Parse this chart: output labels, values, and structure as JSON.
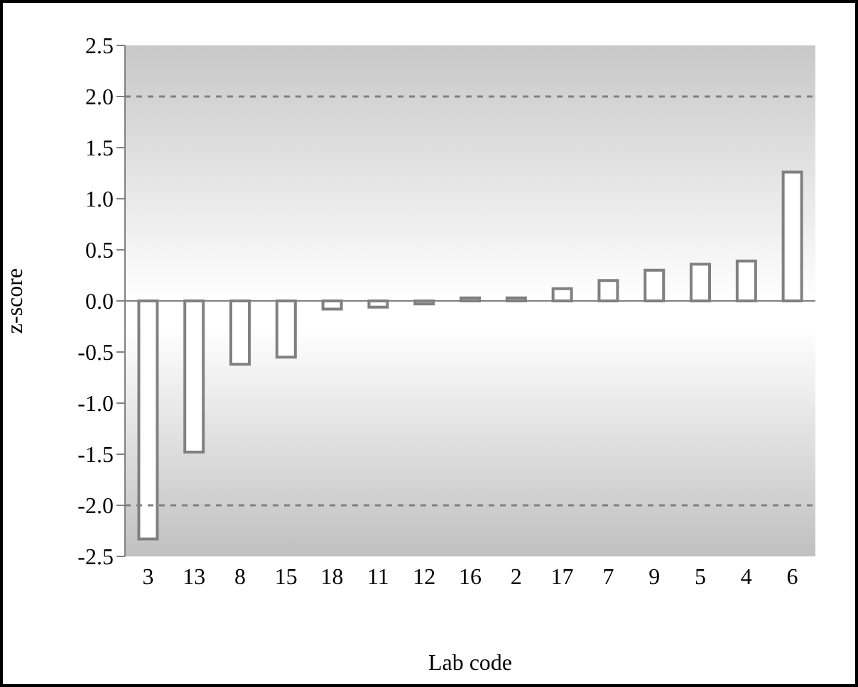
{
  "chart_data": {
    "type": "bar",
    "xlabel": "Lab code",
    "ylabel": "z-score",
    "categories": [
      "3",
      "13",
      "8",
      "15",
      "18",
      "11",
      "12",
      "16",
      "2",
      "17",
      "7",
      "9",
      "5",
      "4",
      "6"
    ],
    "values": [
      -2.33,
      -1.48,
      -0.62,
      -0.55,
      -0.08,
      -0.06,
      -0.03,
      0.03,
      0.03,
      0.12,
      0.2,
      0.3,
      0.36,
      0.39,
      1.26
    ],
    "color": "#ffffff",
    "ylim": [
      -2.5,
      2.5
    ],
    "yticks": [
      {
        "value": -2.5,
        "label": "-2.5"
      },
      {
        "value": -2,
        "label": "-2.0"
      },
      {
        "value": -1.5,
        "label": "-1.5"
      },
      {
        "value": -1,
        "label": "-1.0"
      },
      {
        "value": -0.5,
        "label": "-0.5"
      },
      {
        "value": 0,
        "label": "0.0"
      },
      {
        "value": 0.5,
        "label": "0.5"
      },
      {
        "value": 1,
        "label": "1.0"
      },
      {
        "value": 1.5,
        "label": "1.5"
      },
      {
        "value": 2,
        "label": "2.0"
      },
      {
        "value": 2.5,
        "label": "2.5"
      }
    ],
    "ref_lines": [
      {
        "axis": "y",
        "value": 2,
        "color": "#808080",
        "line_style": "dashed"
      },
      {
        "axis": "y",
        "value": -2,
        "color": "#808080",
        "line_style": "dashed"
      }
    ],
    "grid": false,
    "legend": false
  }
}
